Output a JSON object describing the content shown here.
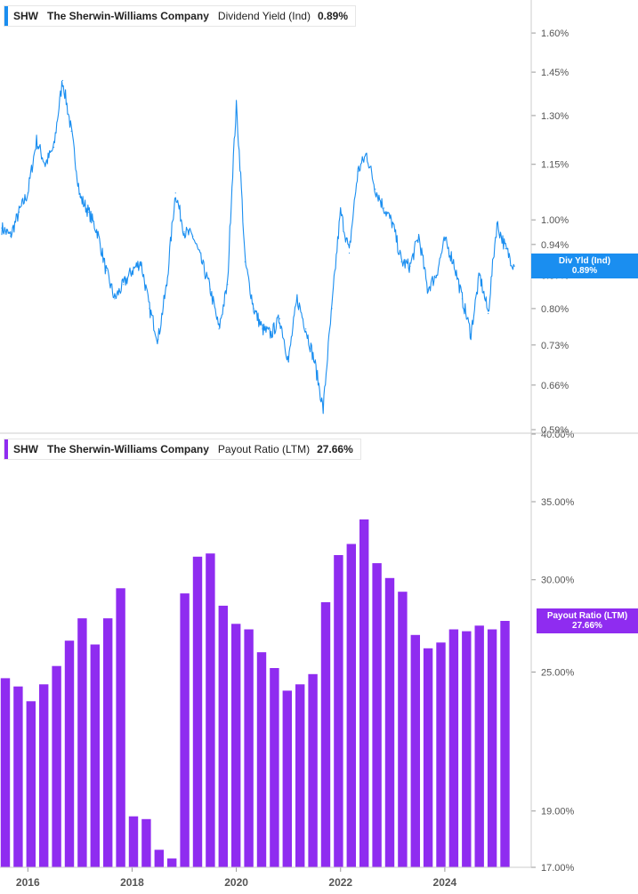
{
  "chart_data": [
    {
      "type": "line",
      "legend": {
        "ticker": "SHW",
        "company": "The Sherwin-Williams Company",
        "metric": "Dividend Yield (Ind)",
        "value": "0.89%"
      },
      "color": "#1a8ef0",
      "axis_position": "right",
      "scale": "log",
      "ylim": [
        0.59,
        1.7
      ],
      "yticks": [
        {
          "v": 1.6,
          "label": "1.60%"
        },
        {
          "v": 1.45,
          "label": "1.45%"
        },
        {
          "v": 1.3,
          "label": "1.30%"
        },
        {
          "v": 1.15,
          "label": "1.15%"
        },
        {
          "v": 1.0,
          "label": "1.00%"
        },
        {
          "v": 0.94,
          "label": "0.94%"
        },
        {
          "v": 0.87,
          "label": "0.87%"
        },
        {
          "v": 0.8,
          "label": "0.80%"
        },
        {
          "v": 0.73,
          "label": "0.73%"
        },
        {
          "v": 0.66,
          "label": "0.66%"
        },
        {
          "v": 0.59,
          "label": "0.59%"
        }
      ],
      "flag": {
        "line1": "Div Yld (Ind)",
        "line2": "0.89%",
        "value": 0.89
      },
      "x": [
        "2015-07",
        "2015-09",
        "2015-11",
        "2016-01",
        "2016-03",
        "2016-05",
        "2016-07",
        "2016-09",
        "2016-11",
        "2017-01",
        "2017-03",
        "2017-05",
        "2017-07",
        "2017-09",
        "2017-11",
        "2018-01",
        "2018-03",
        "2018-05",
        "2018-07",
        "2018-09",
        "2018-11",
        "2019-01",
        "2019-03",
        "2019-05",
        "2019-07",
        "2019-09",
        "2019-11",
        "2020-01",
        "2020-03",
        "2020-05",
        "2020-07",
        "2020-09",
        "2020-11",
        "2021-01",
        "2021-03",
        "2021-05",
        "2021-07",
        "2021-09",
        "2021-11",
        "2022-01",
        "2022-03",
        "2022-05",
        "2022-07",
        "2022-09",
        "2022-11",
        "2023-01",
        "2023-03",
        "2023-05",
        "2023-07",
        "2023-09",
        "2023-11",
        "2024-01",
        "2024-03",
        "2024-05",
        "2024-07",
        "2024-09",
        "2024-11",
        "2025-01",
        "2025-03",
        "2025-05"
      ],
      "values": [
        0.98,
        0.96,
        1.02,
        1.07,
        1.22,
        1.15,
        1.2,
        1.42,
        1.25,
        1.06,
        1.02,
        0.97,
        0.88,
        0.82,
        0.85,
        0.88,
        0.9,
        0.8,
        0.74,
        0.85,
        1.07,
        0.97,
        0.96,
        0.9,
        0.84,
        0.76,
        0.85,
        1.33,
        0.9,
        0.8,
        0.76,
        0.75,
        0.78,
        0.7,
        0.82,
        0.76,
        0.7,
        0.62,
        0.8,
        1.02,
        0.92,
        1.13,
        1.18,
        1.08,
        1.03,
        0.99,
        0.9,
        0.89,
        0.96,
        0.84,
        0.87,
        0.95,
        0.9,
        0.82,
        0.75,
        0.87,
        0.79,
        0.99,
        0.93,
        0.89
      ]
    },
    {
      "type": "bar",
      "legend": {
        "ticker": "SHW",
        "company": "The Sherwin-Williams Company",
        "metric": "Payout Ratio (LTM)",
        "value": "27.66%"
      },
      "color": "#8f2cf0",
      "axis_position": "right",
      "scale": "log",
      "ylim": [
        16.5,
        40.0
      ],
      "yticks": [
        {
          "v": 40.0,
          "label": "40.00%"
        },
        {
          "v": 35.0,
          "label": "35.00%"
        },
        {
          "v": 30.0,
          "label": "30.00%"
        },
        {
          "v": 25.0,
          "label": "25.00%"
        },
        {
          "v": 19.0,
          "label": "19.00%"
        },
        {
          "v": 17.0,
          "label": "17.00%"
        }
      ],
      "flag": {
        "line1": "Payout Ratio (LTM)",
        "line2": "27.66%",
        "value": 27.66
      },
      "categories": [
        "2015-Q3",
        "2015-Q4",
        "2016-Q1",
        "2016-Q2",
        "2016-Q3",
        "2016-Q4",
        "2017-Q1",
        "2017-Q2",
        "2017-Q3",
        "2017-Q4",
        "2018-Q1",
        "2018-Q2",
        "2018-Q3",
        "2018-Q4",
        "2019-Q1",
        "2019-Q2",
        "2019-Q3",
        "2019-Q4",
        "2020-Q1",
        "2020-Q2",
        "2020-Q3",
        "2020-Q4",
        "2021-Q1",
        "2021-Q2",
        "2021-Q3",
        "2021-Q4",
        "2022-Q1",
        "2022-Q2",
        "2022-Q3",
        "2022-Q4",
        "2023-Q1",
        "2023-Q2",
        "2023-Q3",
        "2023-Q4",
        "2024-Q1",
        "2024-Q2",
        "2024-Q3",
        "2024-Q4",
        "2025-Q1",
        "2025-Q2"
      ],
      "values": [
        24.7,
        24.3,
        23.6,
        24.4,
        25.3,
        26.6,
        27.8,
        26.4,
        27.8,
        29.5,
        18.8,
        18.7,
        17.6,
        17.3,
        29.2,
        31.4,
        31.6,
        28.5,
        27.5,
        27.2,
        26.0,
        25.2,
        24.1,
        24.4,
        24.9,
        28.7,
        31.5,
        32.2,
        33.8,
        31.0,
        30.1,
        29.3,
        26.9,
        26.2,
        26.5,
        27.2,
        27.1,
        27.4,
        27.2,
        27.66
      ]
    }
  ],
  "xaxis": {
    "labels": [
      {
        "date": "2016-01",
        "label": "2016"
      },
      {
        "date": "2018-01",
        "label": "2018"
      },
      {
        "date": "2020-01",
        "label": "2020"
      },
      {
        "date": "2022-01",
        "label": "2022"
      },
      {
        "date": "2024-01",
        "label": "2024"
      }
    ]
  }
}
